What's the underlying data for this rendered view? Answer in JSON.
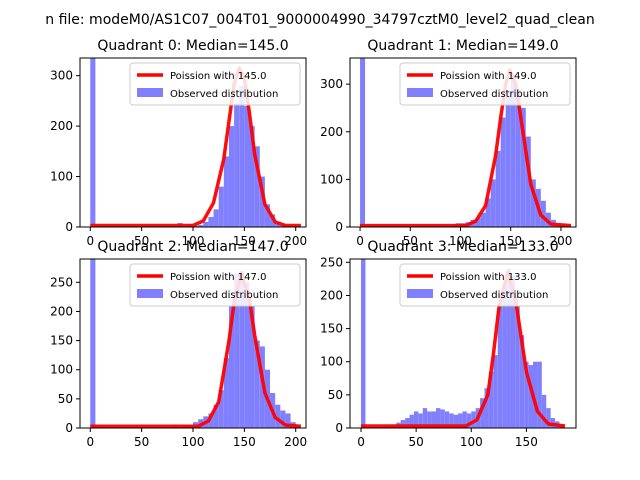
{
  "suptitle": "n file: modeM0/AS1C07_004T01_9000004990_34797cztM0_level2_quad_clean",
  "legend_labels": {
    "fit_prefix": "Poission with",
    "observed": "Observed distribution"
  },
  "colors": {
    "fit": "#ff0000",
    "hist": "#8080ff",
    "axis": "#000000"
  },
  "chart_data": [
    {
      "type": "bar",
      "title": "Quadrant 0: Median=145.0",
      "poisson_mean": 145.0,
      "fit_label": "Poission with 145.0",
      "xlim": [
        -10,
        210
      ],
      "ylim": [
        0,
        335
      ],
      "xticks": [
        0,
        50,
        100,
        150,
        200
      ],
      "yticks": [
        0,
        100,
        200,
        300
      ],
      "bin_width": 5,
      "bins": [
        [
          0,
          335
        ],
        [
          85,
          8
        ],
        [
          95,
          6
        ],
        [
          100,
          3
        ],
        [
          105,
          4
        ],
        [
          110,
          10
        ],
        [
          115,
          20
        ],
        [
          120,
          35
        ],
        [
          125,
          80
        ],
        [
          130,
          140
        ],
        [
          135,
          200
        ],
        [
          140,
          245
        ],
        [
          145,
          280
        ],
        [
          150,
          240
        ],
        [
          155,
          200
        ],
        [
          160,
          160
        ],
        [
          165,
          100
        ],
        [
          170,
          45
        ],
        [
          175,
          25
        ],
        [
          180,
          10
        ],
        [
          185,
          5
        ],
        [
          200,
          3
        ]
      ],
      "fit_curve": [
        [
          0,
          3
        ],
        [
          100,
          3
        ],
        [
          110,
          12
        ],
        [
          120,
          48
        ],
        [
          130,
          135
        ],
        [
          135,
          210
        ],
        [
          140,
          282
        ],
        [
          145,
          315
        ],
        [
          150,
          295
        ],
        [
          155,
          225
        ],
        [
          160,
          145
        ],
        [
          170,
          45
        ],
        [
          180,
          10
        ],
        [
          190,
          3
        ],
        [
          205,
          3
        ]
      ]
    },
    {
      "type": "bar",
      "title": "Quadrant 1: Median=149.0",
      "poisson_mean": 149.0,
      "fit_label": "Poission with 149.0",
      "xlim": [
        -10,
        215
      ],
      "ylim": [
        0,
        355
      ],
      "xticks": [
        0,
        50,
        100,
        150,
        200
      ],
      "yticks": [
        0,
        100,
        200,
        300
      ],
      "bin_width": 5,
      "bins": [
        [
          0,
          355
        ],
        [
          80,
          3
        ],
        [
          90,
          5
        ],
        [
          95,
          8
        ],
        [
          100,
          8
        ],
        [
          105,
          10
        ],
        [
          110,
          15
        ],
        [
          115,
          20
        ],
        [
          120,
          30
        ],
        [
          125,
          60
        ],
        [
          130,
          100
        ],
        [
          135,
          160
        ],
        [
          140,
          230
        ],
        [
          145,
          285
        ],
        [
          150,
          320
        ],
        [
          155,
          290
        ],
        [
          160,
          250
        ],
        [
          165,
          190
        ],
        [
          170,
          100
        ],
        [
          175,
          80
        ],
        [
          180,
          55
        ],
        [
          185,
          30
        ],
        [
          190,
          15
        ],
        [
          195,
          8
        ],
        [
          200,
          5
        ],
        [
          205,
          3
        ]
      ],
      "fit_curve": [
        [
          0,
          3
        ],
        [
          105,
          3
        ],
        [
          115,
          12
        ],
        [
          125,
          45
        ],
        [
          135,
          150
        ],
        [
          140,
          230
        ],
        [
          145,
          300
        ],
        [
          149,
          330
        ],
        [
          155,
          300
        ],
        [
          160,
          230
        ],
        [
          170,
          90
        ],
        [
          180,
          25
        ],
        [
          190,
          6
        ],
        [
          210,
          3
        ]
      ]
    },
    {
      "type": "bar",
      "title": "Quadrant 2: Median=147.0",
      "poisson_mean": 147.0,
      "fit_label": "Poission with 147.0",
      "xlim": [
        -10,
        210
      ],
      "ylim": [
        0,
        290
      ],
      "xticks": [
        0,
        50,
        100,
        150,
        200
      ],
      "yticks": [
        0,
        50,
        100,
        150,
        200,
        250
      ],
      "bin_width": 5,
      "bins": [
        [
          0,
          290
        ],
        [
          80,
          5
        ],
        [
          90,
          5
        ],
        [
          95,
          5
        ],
        [
          100,
          10
        ],
        [
          105,
          15
        ],
        [
          110,
          20
        ],
        [
          115,
          25
        ],
        [
          120,
          40
        ],
        [
          125,
          65
        ],
        [
          130,
          120
        ],
        [
          135,
          210
        ],
        [
          140,
          265
        ],
        [
          145,
          270
        ],
        [
          150,
          250
        ],
        [
          155,
          210
        ],
        [
          160,
          150
        ],
        [
          165,
          140
        ],
        [
          170,
          100
        ],
        [
          175,
          60
        ],
        [
          180,
          40
        ],
        [
          185,
          30
        ],
        [
          190,
          25
        ],
        [
          195,
          10
        ],
        [
          200,
          3
        ]
      ],
      "fit_curve": [
        [
          0,
          3
        ],
        [
          105,
          3
        ],
        [
          115,
          12
        ],
        [
          125,
          45
        ],
        [
          135,
          150
        ],
        [
          140,
          215
        ],
        [
          147,
          265
        ],
        [
          155,
          220
        ],
        [
          160,
          160
        ],
        [
          170,
          60
        ],
        [
          180,
          18
        ],
        [
          190,
          5
        ],
        [
          205,
          3
        ]
      ]
    },
    {
      "type": "bar",
      "title": "Quadrant 3: Median=133.0",
      "poisson_mean": 133.0,
      "fit_label": "Poission with 133.0",
      "xlim": [
        -10,
        195
      ],
      "ylim": [
        0,
        255
      ],
      "xticks": [
        0,
        50,
        100,
        150
      ],
      "yticks": [
        0,
        50,
        100,
        150,
        200,
        250
      ],
      "bin_width": 4,
      "bins": [
        [
          0,
          255
        ],
        [
          20,
          3
        ],
        [
          24,
          3
        ],
        [
          28,
          5
        ],
        [
          32,
          8
        ],
        [
          36,
          12
        ],
        [
          40,
          15
        ],
        [
          44,
          20
        ],
        [
          48,
          25
        ],
        [
          52,
          22
        ],
        [
          56,
          30
        ],
        [
          60,
          25
        ],
        [
          64,
          25
        ],
        [
          68,
          30
        ],
        [
          72,
          28
        ],
        [
          76,
          25
        ],
        [
          80,
          22
        ],
        [
          84,
          20
        ],
        [
          88,
          22
        ],
        [
          92,
          25
        ],
        [
          96,
          22
        ],
        [
          100,
          25
        ],
        [
          104,
          30
        ],
        [
          108,
          45
        ],
        [
          112,
          60
        ],
        [
          116,
          85
        ],
        [
          120,
          110
        ],
        [
          124,
          185
        ],
        [
          128,
          215
        ],
        [
          132,
          240
        ],
        [
          136,
          230
        ],
        [
          140,
          185
        ],
        [
          144,
          140
        ],
        [
          148,
          100
        ],
        [
          152,
          95
        ],
        [
          156,
          100
        ],
        [
          160,
          100
        ],
        [
          164,
          50
        ],
        [
          168,
          30
        ],
        [
          172,
          15
        ],
        [
          176,
          10
        ],
        [
          180,
          5
        ]
      ],
      "fit_curve": [
        [
          0,
          3
        ],
        [
          95,
          3
        ],
        [
          105,
          12
        ],
        [
          115,
          50
        ],
        [
          120,
          110
        ],
        [
          125,
          180
        ],
        [
          133,
          235
        ],
        [
          140,
          195
        ],
        [
          145,
          140
        ],
        [
          150,
          85
        ],
        [
          160,
          25
        ],
        [
          170,
          6
        ],
        [
          185,
          3
        ]
      ]
    }
  ]
}
